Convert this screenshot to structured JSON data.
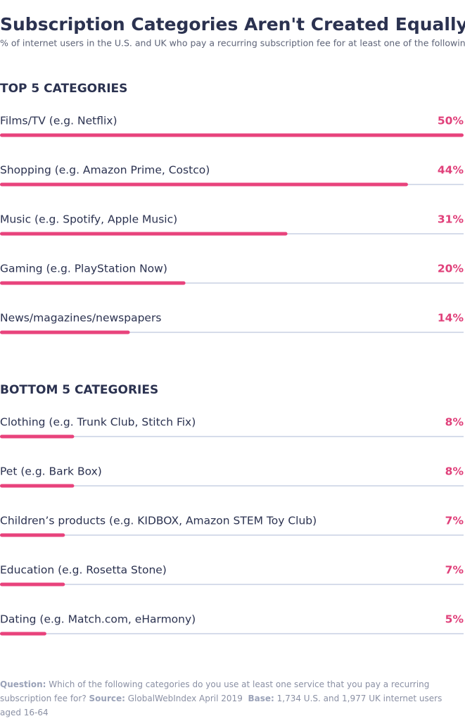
{
  "title": "Subscription Categories Aren't Created Equally",
  "subtitle": "% of internet users in the U.S. and UK who pay a recurring subscription fee for at least one of the following:",
  "chart_data": [
    {
      "type": "bar",
      "orientation": "horizontal",
      "title": "TOP 5 CATEGORIES",
      "categories": [
        "Films/TV (e.g. Netflix)",
        "Shopping (e.g. Amazon Prime, Costco)",
        "Music (e.g. Spotify, Apple Music)",
        "Gaming (e.g. PlayStation Now)",
        "News/magazines/newspapers"
      ],
      "values": [
        50,
        44,
        31,
        20,
        14
      ],
      "value_labels": [
        "50%",
        "44%",
        "31%",
        "20%",
        "14%"
      ],
      "xlim": [
        0,
        50
      ],
      "color": "#e8437c"
    },
    {
      "type": "bar",
      "orientation": "horizontal",
      "title": "BOTTOM 5 CATEGORIES",
      "categories": [
        "Clothing (e.g. Trunk Club, Stitch Fix)",
        "Pet (e.g. Bark Box)",
        "Children’s products (e.g. KIDBOX, Amazon STEM Toy Club)",
        "Education (e.g. Rosetta Stone)",
        "Dating (e.g. Match.com, eHarmony)"
      ],
      "values": [
        8,
        8,
        7,
        7,
        5
      ],
      "value_labels": [
        "8%",
        "8%",
        "7%",
        "7%",
        "5%"
      ],
      "xlim": [
        0,
        50
      ],
      "color": "#e8437c"
    }
  ],
  "footer": {
    "question_label": "Question:",
    "question": "Which of the following categories do you use at least one service that you pay a recurring subscription fee for?",
    "source_label": "Source:",
    "source": "GlobalWebIndex April 2019",
    "base_label": "Base:",
    "base": "1,734 U.S. and 1,977 UK internet users aged 16-64"
  }
}
